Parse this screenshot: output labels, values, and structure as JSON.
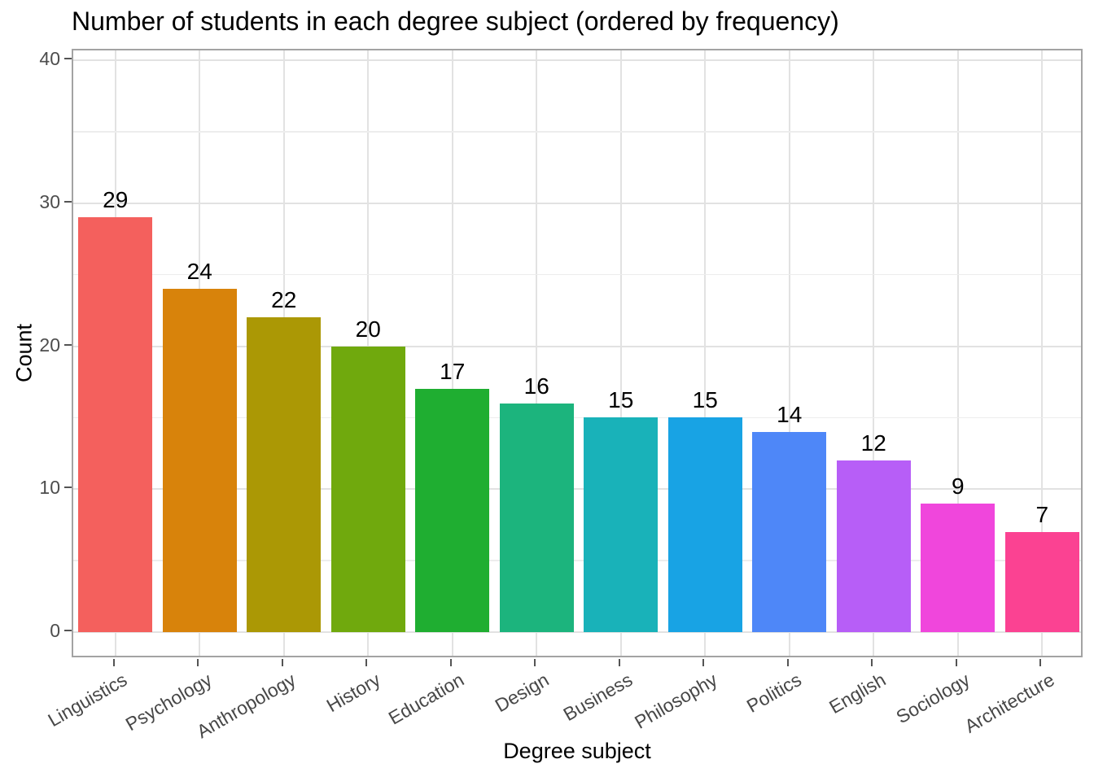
{
  "chart_data": {
    "type": "bar",
    "title": "Number of students in each degree subject (ordered by frequency)",
    "xlabel": "Degree subject",
    "ylabel": "Count",
    "categories": [
      "Linguistics",
      "Psychology",
      "Anthropology",
      "History",
      "Education",
      "Design",
      "Business",
      "Philosophy",
      "Politics",
      "English",
      "Sociology",
      "Architecture"
    ],
    "values": [
      29,
      24,
      22,
      20,
      17,
      16,
      15,
      15,
      14,
      12,
      9,
      7
    ],
    "value_labels": [
      "29",
      "24",
      "22",
      "20",
      "17",
      "16",
      "15",
      "15",
      "14",
      "12",
      "9",
      "7"
    ],
    "bar_colors": [
      "#F4605D",
      "#D8830B",
      "#AB9805",
      "#70A90D",
      "#1FAE31",
      "#1CB47D",
      "#19B2B9",
      "#18A3E4",
      "#4E87F8",
      "#B75EF7",
      "#F046DC",
      "#FB4292"
    ],
    "ylim": [
      0,
      40
    ],
    "y_major_ticks": [
      0,
      10,
      20,
      30,
      40
    ],
    "y_minor_ticks": [
      5,
      15,
      25,
      35
    ],
    "x_tick_label_angle_deg": 30,
    "grid": "horizontal major+minor, vertical major at category centers",
    "legend": "none",
    "ordering": "descending by frequency"
  },
  "colors": {
    "background": "#FFFFFF",
    "panel_border": "#A3A3A3",
    "grid_major": "#E2E2E2",
    "grid_minor": "#EDEDED",
    "tick_mark": "#545454",
    "axis_tick_text": "#4D4D4D",
    "title_text": "#000000"
  }
}
